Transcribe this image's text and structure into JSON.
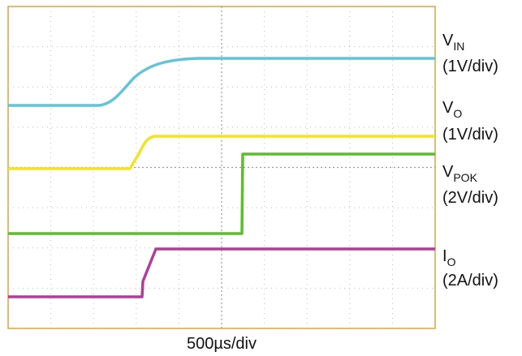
{
  "channels": [
    {
      "name": "V",
      "subscript": "IN",
      "scale": "(1V/div)"
    },
    {
      "name": "V",
      "subscript": "O",
      "scale": "(1V/div)"
    },
    {
      "name": "V",
      "subscript": "POK",
      "scale": "(2V/div)"
    },
    {
      "name": "I",
      "subscript": "O",
      "scale": "(2A/div)"
    }
  ],
  "time_scale": "500µs/div"
}
